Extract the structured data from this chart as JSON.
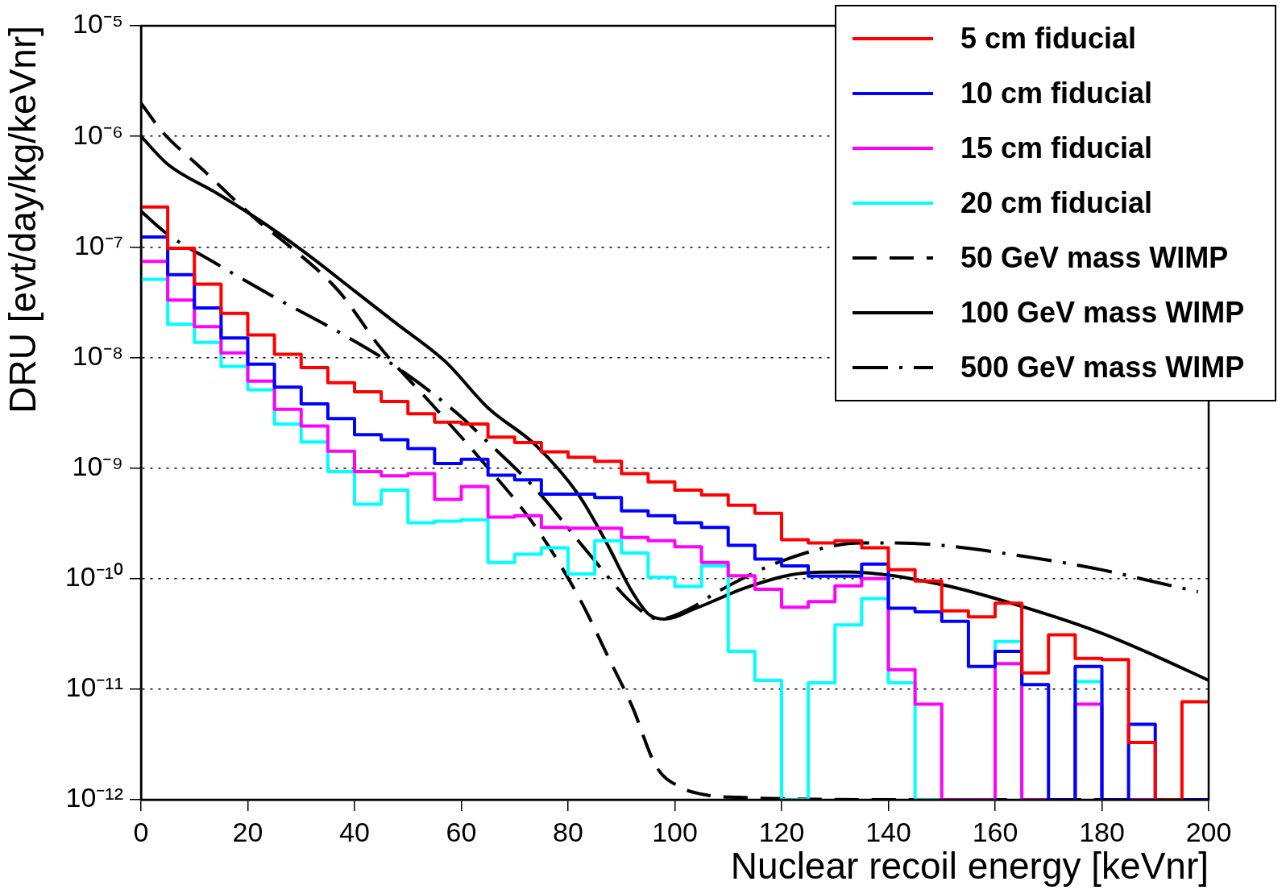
{
  "chart_data": {
    "type": "histogram",
    "xlabel": "Nuclear recoil energy [keVnr]",
    "ylabel": "DRU [evt/day/kg/keVnr]",
    "bins": [
      0,
      5,
      10,
      15,
      20,
      25,
      30,
      35,
      40,
      45,
      50,
      55,
      60,
      65,
      70,
      75,
      80,
      85,
      90,
      95,
      100,
      105,
      110,
      115,
      120,
      125,
      130,
      135,
      140,
      145,
      150,
      155,
      160,
      165,
      170,
      175,
      180,
      185,
      190,
      195,
      200
    ],
    "series": [
      {
        "name": "5 cm fiducial",
        "color": "#ff0000",
        "values": [
          2.3e-07,
          9.7e-08,
          4.6e-08,
          2.5e-08,
          1.6e-08,
          1.07e-08,
          8.1e-09,
          5.9e-09,
          4.9e-09,
          4e-09,
          3.1e-09,
          2.6e-09,
          2.5e-09,
          1.9e-09,
          1.7e-09,
          1.4e-09,
          1.25e-09,
          1.15e-09,
          8.9e-10,
          7.5e-10,
          6.3e-10,
          5.7e-10,
          4.6e-10,
          3.9e-10,
          2.25e-10,
          2.1e-10,
          2.2e-10,
          1.9e-10,
          1.2e-10,
          9.5e-11,
          5.1e-11,
          4.5e-11,
          6e-11,
          1.4e-11,
          3.1e-11,
          1.9e-11,
          1.85e-11,
          3.3e-12,
          1e-12,
          7.7e-12
        ]
      },
      {
        "name": "10 cm fiducial",
        "color": "#0000ff",
        "values": [
          1.23e-07,
          5.6e-08,
          2.8e-08,
          1.5e-08,
          8.7e-09,
          5.4e-09,
          3.8e-09,
          2.8e-09,
          2e-09,
          1.8e-09,
          1.5e-09,
          1.1e-09,
          1.2e-09,
          8.6e-10,
          7.8e-10,
          5.8e-10,
          5.8e-10,
          5.4e-10,
          4.1e-10,
          3.7e-10,
          3.2e-10,
          2.9e-10,
          2e-10,
          1.5e-10,
          1.3e-10,
          1.05e-10,
          1.05e-10,
          1.35e-10,
          5.4e-11,
          5e-11,
          4.1e-11,
          1.6e-11,
          2.2e-11,
          1.1e-11,
          1e-12,
          1.6e-11,
          1e-12,
          4.8e-12,
          1e-12,
          1e-12
        ]
      },
      {
        "name": "15 cm fiducial",
        "color": "#ff00ff",
        "values": [
          7.4e-08,
          3.3e-08,
          1.9e-08,
          1.1e-08,
          6.1e-09,
          3.4e-09,
          2.4e-09,
          1.42e-09,
          9.3e-10,
          8.5e-10,
          8.9e-10,
          5.2e-10,
          6.8e-10,
          3.6e-10,
          3.7e-10,
          2.9e-10,
          2.85e-10,
          2.85e-10,
          2.35e-10,
          2.2e-10,
          1.94e-10,
          1.4e-10,
          1.06e-10,
          8e-11,
          5.5e-11,
          6.2e-11,
          8.6e-11,
          1e-10,
          1.5e-11,
          7.3e-12,
          1e-12,
          1e-12,
          1.7e-11,
          1e-12,
          1e-12,
          7.3e-12,
          1e-12,
          1e-12,
          1e-12,
          1e-12
        ]
      },
      {
        "name": "20 cm fiducial",
        "color": "#00ffff",
        "values": [
          5.1e-08,
          2e-08,
          1.37e-08,
          8.3e-09,
          5.1e-09,
          2.5e-09,
          1.72e-09,
          9.3e-10,
          4.7e-10,
          6.3e-10,
          3.2e-10,
          3.3e-10,
          3.4e-10,
          1.4e-10,
          1.66e-10,
          1.9e-10,
          1.1e-10,
          2.2e-10,
          1.7e-10,
          1.03e-10,
          8.5e-11,
          1.3e-10,
          2.2e-11,
          1.2e-11,
          1e-12,
          1.14e-11,
          3.8e-11,
          6.6e-11,
          1.14e-11,
          1e-12,
          1e-12,
          1e-12,
          2.7e-11,
          1e-12,
          1e-12,
          1.17e-11,
          1e-12,
          1e-12,
          1e-12,
          1e-12
        ]
      },
      {
        "name": "50 GeV mass WIMP",
        "type": "line",
        "color": "#000000",
        "line_style": "dashed",
        "x": [
          0,
          4,
          11,
          22,
          28,
          37,
          45,
          54,
          63,
          74,
          82,
          88,
          92,
          96.5,
          101,
          106,
          112,
          120,
          140,
          170,
          200
        ],
        "values": [
          2e-06,
          1.1e-06,
          5.3e-07,
          1.7e-07,
          1e-07,
          4e-08,
          1.2e-08,
          4e-09,
          1.3e-09,
          2.9e-10,
          6.8e-11,
          1.75e-11,
          7e-12,
          2e-12,
          1.3e-12,
          1.1e-12,
          1.05e-12,
          1.02e-12,
          1e-12,
          1e-12,
          1e-12
        ]
      },
      {
        "name": "100 GeV mass WIMP",
        "type": "line",
        "color": "#000000",
        "line_style": "solid",
        "x": [
          0,
          5,
          14,
          22,
          31,
          40,
          48,
          57,
          65,
          74,
          82,
          87,
          92,
          95,
          98,
          104,
          114,
          124,
          132,
          150,
          165,
          180,
          190,
          200
        ],
        "values": [
          1e-06,
          5.6e-07,
          3.1e-07,
          1.77e-07,
          8.7e-08,
          4e-08,
          2e-08,
          9.2e-09,
          3.5e-09,
          1.6e-09,
          5.7e-10,
          2.2e-10,
          7.6e-11,
          4.8e-11,
          4.3e-11,
          5.4e-11,
          8.5e-11,
          1.12e-10,
          1.15e-10,
          8.8e-11,
          5.6e-11,
          3.2e-11,
          2e-11,
          1.2e-11
        ]
      },
      {
        "name": "500 GeV mass WIMP",
        "type": "line",
        "color": "#000000",
        "line_style": "dashdot",
        "x": [
          0,
          5,
          14,
          25,
          37,
          48,
          60,
          64,
          74,
          84,
          92,
          97,
          103,
          108,
          121,
          135,
          140,
          150,
          165,
          180,
          190,
          198
        ],
        "values": [
          2.1e-07,
          1.3e-07,
          7.1e-08,
          3.5e-08,
          1.7e-08,
          8.1e-09,
          2.9e-09,
          1.9e-09,
          6.4e-10,
          1.66e-10,
          6e-11,
          4.3e-11,
          5.4e-11,
          7.6e-11,
          1.5e-10,
          2.1e-10,
          2.1e-10,
          2e-10,
          1.6e-10,
          1.2e-10,
          9.3e-11,
          7.6e-11
        ]
      }
    ],
    "xlim": [
      0,
      200
    ],
    "xticks": [
      0,
      20,
      40,
      60,
      80,
      100,
      120,
      140,
      160,
      180,
      200
    ],
    "ylim": [
      1e-12,
      1e-05
    ],
    "yticks": [
      {
        "value": 1e-12,
        "label": "10⁻¹²"
      },
      {
        "value": 1e-11,
        "label": "10⁻¹¹"
      },
      {
        "value": 1e-10,
        "label": "10⁻¹⁰"
      },
      {
        "value": 1e-09,
        "label": "10⁻⁹"
      },
      {
        "value": 1e-08,
        "label": "10⁻⁸"
      },
      {
        "value": 1e-07,
        "label": "10⁻⁷"
      },
      {
        "value": 1e-06,
        "label": "10⁻⁶"
      },
      {
        "value": 1e-05,
        "label": "10⁻⁵"
      }
    ],
    "log": "y",
    "grid": "y",
    "legend": "top right"
  }
}
